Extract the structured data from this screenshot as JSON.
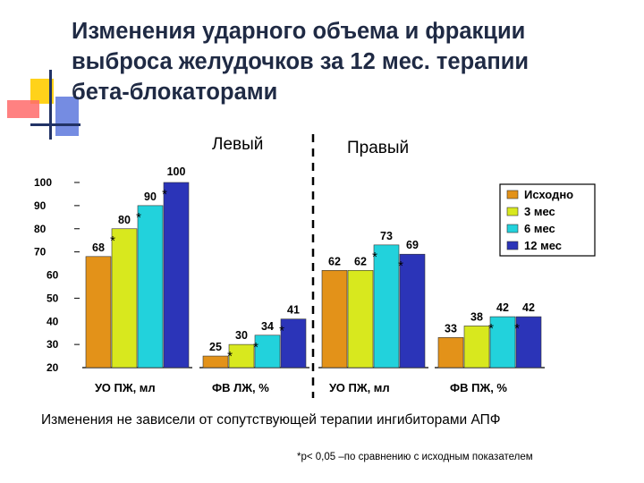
{
  "slide": {
    "title": "Изменения ударного объема и фракции\nвыброса желудочков за 12 мес. терапии\nбета-блокаторами",
    "left_label": "Левый",
    "right_label": "Правый",
    "note": "Изменения не зависели от сопутствующей терапии ингибиторами АПФ",
    "footnote": "*p< 0,05 –по сравнению с исходным показателем"
  },
  "chart_data": {
    "type": "bar",
    "categories": [
      "УО ПЖ, мл",
      "ФВ ЛЖ, %",
      "УО ПЖ, мл",
      "ФВ ПЖ, %"
    ],
    "sections": [
      "Левый",
      "Правый"
    ],
    "series": [
      {
        "name": "Исходно",
        "color": "#e39219",
        "values": [
          68,
          25,
          62,
          33
        ],
        "significant": [
          false,
          false,
          false,
          false
        ]
      },
      {
        "name": "3 мес",
        "color": "#d8e81e",
        "values": [
          80,
          30,
          62,
          38
        ],
        "significant": [
          true,
          true,
          false,
          false
        ]
      },
      {
        "name": "6 мес",
        "color": "#22d2dc",
        "values": [
          90,
          34,
          73,
          42
        ],
        "significant": [
          true,
          true,
          true,
          true
        ]
      },
      {
        "name": "12 мес",
        "color": "#2b34b8",
        "values": [
          100,
          41,
          69,
          42
        ],
        "significant": [
          true,
          true,
          true,
          true
        ]
      }
    ],
    "y_ticks_left": [
      {
        "label": "100",
        "value": 100
      },
      {
        "label": "90",
        "value": 90
      },
      {
        "label": "80",
        "value": 80
      },
      {
        "label": "70",
        "value": 70
      }
    ],
    "y_ticks_right": [
      {
        "label": "60",
        "value": 60
      },
      {
        "label": "50",
        "value": 50
      },
      {
        "label": "40",
        "value": 40
      },
      {
        "label": "30",
        "value": 30
      },
      {
        "label": "20",
        "value": 20
      }
    ],
    "ylim": [
      20,
      100
    ],
    "legend_position": "right",
    "significance_marker": "*"
  }
}
